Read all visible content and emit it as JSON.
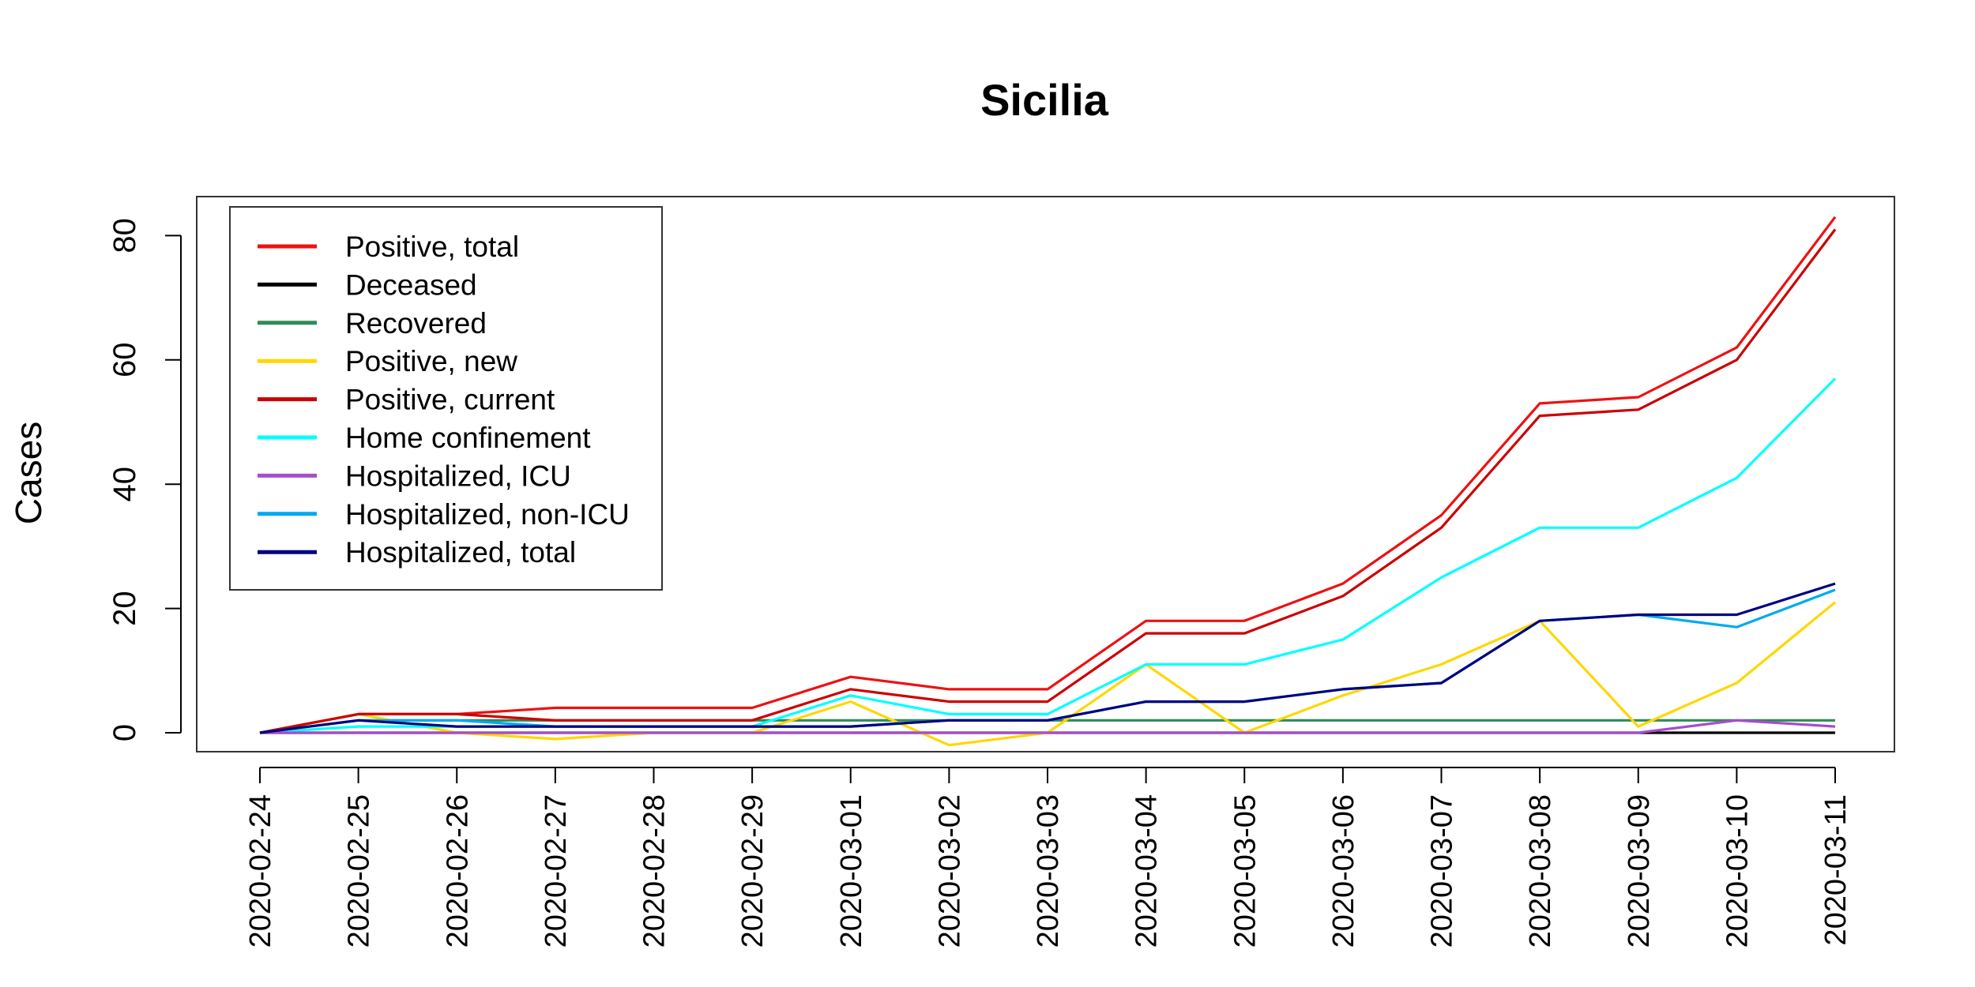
{
  "chart_data": {
    "type": "line",
    "title": "Sicilia",
    "xlabel": "",
    "ylabel": "Cases",
    "ylim": [
      -3,
      83
    ],
    "y_ticks": [
      "0",
      "20",
      "40",
      "60",
      "80"
    ],
    "legend_position": "top-left",
    "categories": [
      "2020-02-24",
      "2020-02-25",
      "2020-02-26",
      "2020-02-27",
      "2020-02-28",
      "2020-02-29",
      "2020-03-01",
      "2020-03-02",
      "2020-03-03",
      "2020-03-04",
      "2020-03-05",
      "2020-03-06",
      "2020-03-07",
      "2020-03-08",
      "2020-03-09",
      "2020-03-10",
      "2020-03-11"
    ],
    "series": [
      {
        "name": "Positive, total",
        "color": "#ee1111",
        "values": [
          0,
          3,
          3,
          4,
          4,
          4,
          9,
          7,
          7,
          18,
          18,
          24,
          35,
          53,
          54,
          62,
          83
        ]
      },
      {
        "name": "Deceased",
        "color": "#000000",
        "values": [
          0,
          0,
          0,
          0,
          0,
          0,
          0,
          0,
          0,
          0,
          0,
          0,
          0,
          0,
          0,
          0,
          0
        ]
      },
      {
        "name": "Recovered",
        "color": "#2e8b57",
        "values": [
          0,
          2,
          2,
          2,
          2,
          2,
          2,
          2,
          2,
          2,
          2,
          2,
          2,
          2,
          2,
          2,
          2
        ]
      },
      {
        "name": "Positive, new",
        "color": "#ffd700",
        "values": [
          0,
          3,
          0,
          -1,
          0,
          0,
          5,
          -2,
          0,
          11,
          0,
          6,
          11,
          18,
          1,
          8,
          21
        ]
      },
      {
        "name": "Positive, current",
        "color": "#cc0000",
        "values": [
          0,
          3,
          3,
          2,
          2,
          2,
          7,
          5,
          5,
          16,
          16,
          22,
          33,
          51,
          52,
          60,
          81
        ]
      },
      {
        "name": "Home confinement",
        "color": "#00ffff",
        "values": [
          0,
          1,
          1,
          1,
          1,
          1,
          6,
          3,
          3,
          11,
          11,
          15,
          25,
          33,
          33,
          41,
          57
        ]
      },
      {
        "name": "Hospitalized, ICU",
        "color": "#a64dcc",
        "values": [
          0,
          0,
          0,
          0,
          0,
          0,
          0,
          0,
          0,
          0,
          0,
          0,
          0,
          0,
          0,
          2,
          1
        ]
      },
      {
        "name": "Hospitalized, non-ICU",
        "color": "#00aaee",
        "values": [
          0,
          2,
          2,
          1,
          1,
          1,
          1,
          2,
          2,
          5,
          5,
          7,
          8,
          18,
          19,
          17,
          23
        ]
      },
      {
        "name": "Hospitalized, total",
        "color": "#000080",
        "values": [
          0,
          2,
          1,
          1,
          1,
          1,
          1,
          2,
          2,
          5,
          5,
          7,
          8,
          18,
          19,
          19,
          24
        ]
      }
    ]
  }
}
